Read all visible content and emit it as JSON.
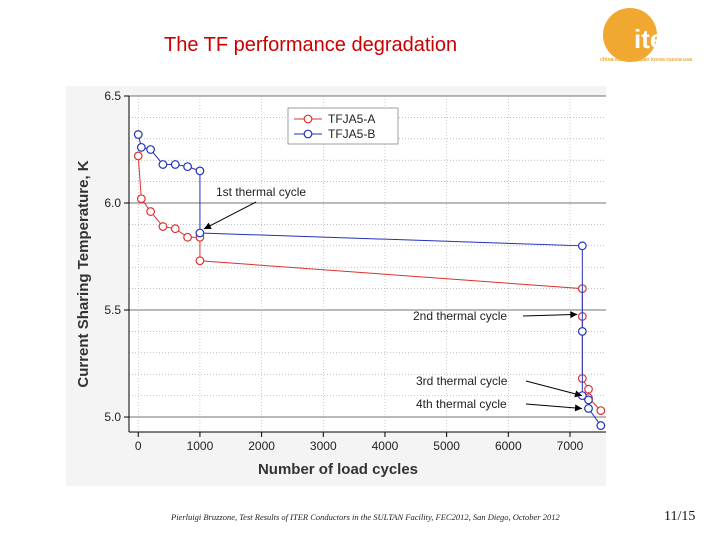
{
  "slide": {
    "title": "The TF performance degradation",
    "footer": "Pierluigi Bruzzone, Test Results of ITER Conductors in the SULTAN Facility, FEC2012, San Diego, October 2012",
    "page_number": "11/15"
  },
  "logo": {
    "name": "iter",
    "subtitle": "china eu india japan korea russia usa",
    "color": "#f0a830"
  },
  "chart_data": {
    "type": "line",
    "xlabel": "Number of load cycles",
    "ylabel": "Current Sharing Temperature, K",
    "xlim": [
      -150,
      7600
    ],
    "ylim": [
      4.93,
      6.5
    ],
    "xticks": [
      0,
      1000,
      2000,
      3000,
      4000,
      5000,
      6000,
      7000
    ],
    "yticks": [
      5.0,
      5.5,
      6.0,
      6.5
    ],
    "grid": true,
    "legend_position": "top-left",
    "series": [
      {
        "name": "TFJA5-A",
        "color": "#dd3030",
        "points": [
          [
            0,
            6.22
          ],
          [
            50,
            6.02
          ],
          [
            200,
            5.96
          ],
          [
            400,
            5.89
          ],
          [
            600,
            5.88
          ],
          [
            800,
            5.84
          ],
          [
            1000,
            5.84
          ],
          [
            1000,
            5.73
          ],
          [
            7200,
            5.6
          ],
          [
            7200,
            5.47
          ],
          [
            7200,
            5.18
          ],
          [
            7300,
            5.13
          ],
          [
            7300,
            5.09
          ],
          [
            7500,
            5.03
          ]
        ]
      },
      {
        "name": "TFJA5-B",
        "color": "#2233bb",
        "points": [
          [
            0,
            6.32
          ],
          [
            50,
            6.26
          ],
          [
            200,
            6.25
          ],
          [
            400,
            6.18
          ],
          [
            600,
            6.18
          ],
          [
            800,
            6.17
          ],
          [
            1000,
            6.15
          ],
          [
            1000,
            5.86
          ],
          [
            7200,
            5.8
          ],
          [
            7200,
            5.4
          ],
          [
            7200,
            5.1
          ],
          [
            7300,
            5.08
          ],
          [
            7300,
            5.04
          ],
          [
            7500,
            4.96
          ]
        ]
      }
    ],
    "annotations": [
      {
        "text": "1st thermal cycle",
        "x": 1000,
        "y": 5.86
      },
      {
        "text": "2nd thermal cycle",
        "x": 7200,
        "y": 5.47
      },
      {
        "text": "3rd thermal cycle",
        "x": 7260,
        "y": 5.1
      },
      {
        "text": "4th thermal cycle",
        "x": 7260,
        "y": 5.04
      }
    ]
  }
}
